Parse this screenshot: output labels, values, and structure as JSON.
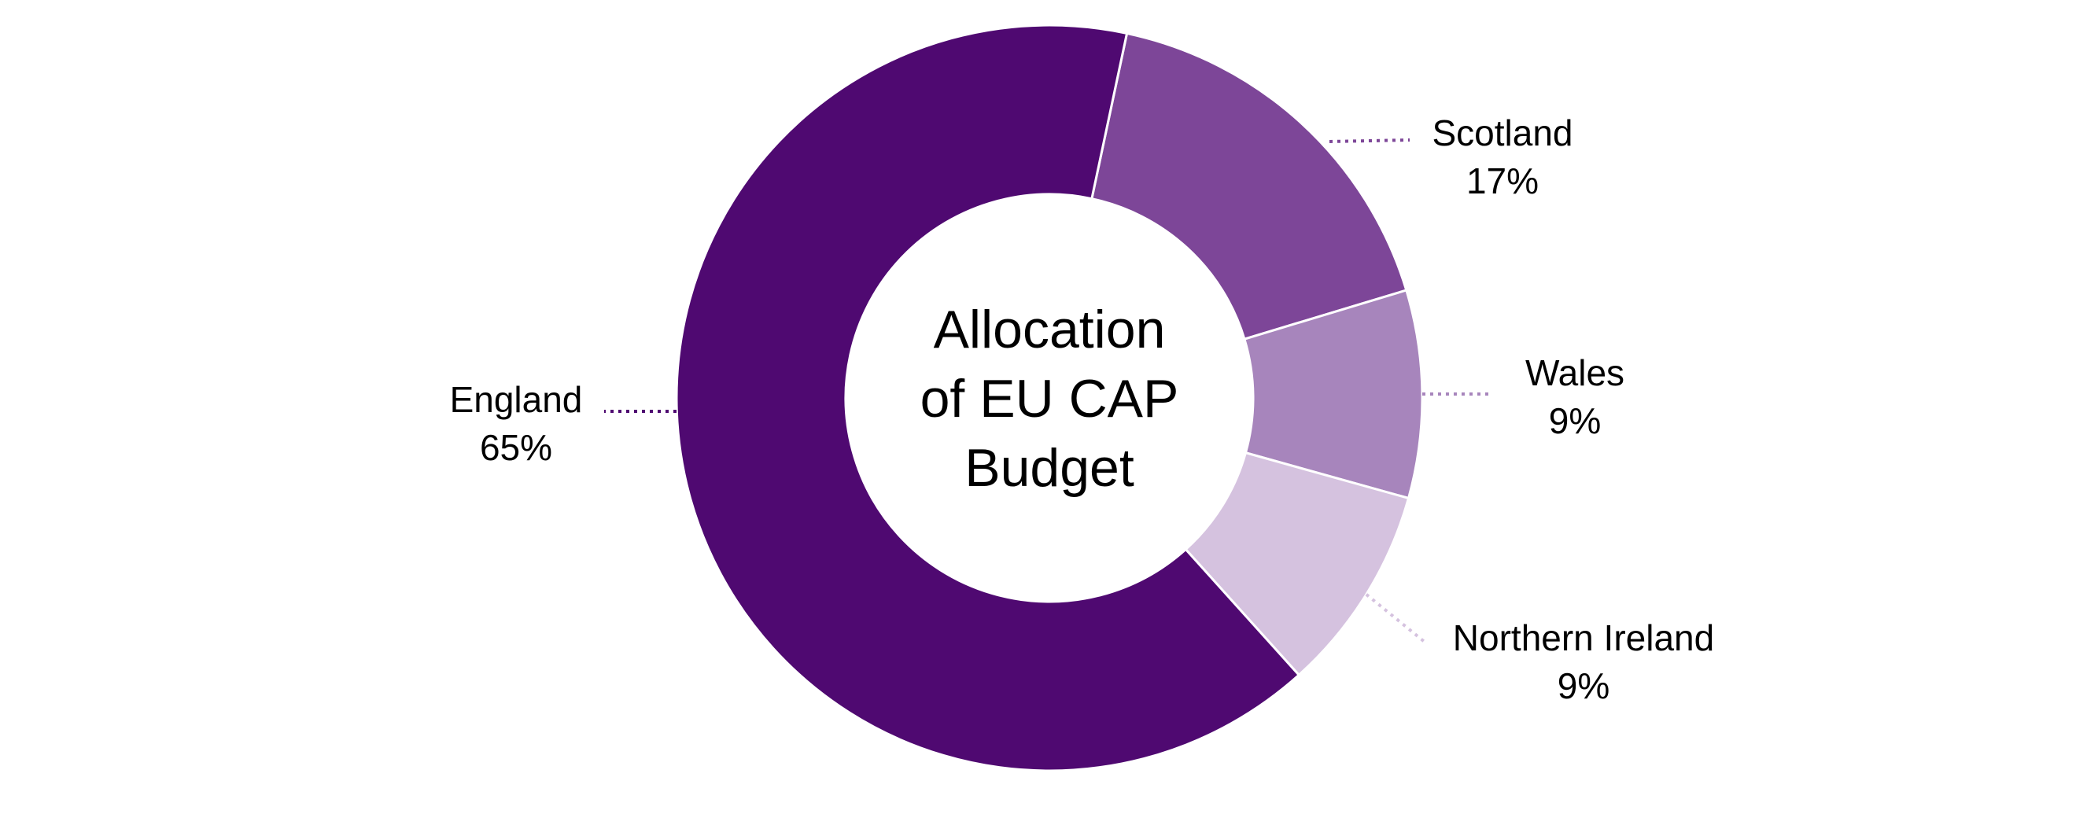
{
  "chart_data": {
    "type": "pie",
    "variant": "donut",
    "center_title": [
      "Allocation",
      "of EU CAP",
      "Budget"
    ],
    "slices": [
      {
        "name": "Scotland",
        "value": 17,
        "label": "17%",
        "color": "#7d4698"
      },
      {
        "name": "Wales",
        "value": 9,
        "label": "9%",
        "color": "#a785bc"
      },
      {
        "name": "Northern Ireland",
        "value": 9,
        "label": "9%",
        "color": "#d5c2df"
      },
      {
        "name": "England",
        "value": 65,
        "label": "65%",
        "color": "#4f0971"
      }
    ],
    "legend": "none",
    "label_text_color": "#000000"
  }
}
